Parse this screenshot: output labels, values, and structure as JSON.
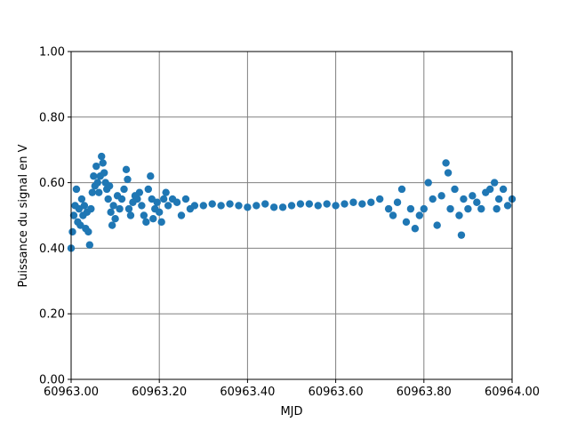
{
  "chart_data": {
    "type": "scatter",
    "xlabel": "MJD",
    "ylabel": "Puissance du signal en V",
    "color": "#1f77b4",
    "grid": true,
    "xlim": [
      60963.0,
      60964.0
    ],
    "ylim": [
      0,
      1
    ],
    "xticks": [
      {
        "value": 60963.0,
        "label": "60963.00"
      },
      {
        "value": 60963.2,
        "label": "60963.20"
      },
      {
        "value": 60963.4,
        "label": "60963.40"
      },
      {
        "value": 60963.6,
        "label": "60963.60"
      },
      {
        "value": 60963.8,
        "label": "60963.80"
      },
      {
        "value": 60964.0,
        "label": "60964.00"
      }
    ],
    "yticks": [
      {
        "value": 0,
        "label": "0.00"
      },
      {
        "value": 0.2,
        "label": "0.20"
      },
      {
        "value": 0.4,
        "label": "0.40"
      },
      {
        "value": 0.6,
        "label": "0.60"
      },
      {
        "value": 0.8,
        "label": "0.80"
      },
      {
        "value": 1,
        "label": "1.00"
      }
    ],
    "x": [
      60963.0,
      60963.003,
      60963.006,
      60963.009,
      60963.012,
      60963.015,
      60963.018,
      60963.021,
      60963.024,
      60963.027,
      60963.03,
      60963.033,
      60963.036,
      60963.039,
      60963.042,
      60963.045,
      60963.048,
      60963.051,
      60963.054,
      60963.057,
      60963.06,
      60963.063,
      60963.066,
      60963.069,
      60963.072,
      60963.075,
      60963.078,
      60963.081,
      60963.084,
      60963.087,
      60963.09,
      60963.093,
      60963.096,
      60963.1,
      60963.105,
      60963.11,
      60963.115,
      60963.12,
      60963.125,
      60963.128,
      60963.131,
      60963.135,
      60963.14,
      60963.145,
      60963.15,
      60963.155,
      60963.16,
      60963.165,
      60963.17,
      60963.175,
      60963.18,
      60963.183,
      60963.186,
      60963.19,
      60963.195,
      60963.2,
      60963.205,
      60963.21,
      60963.215,
      60963.22,
      60963.23,
      60963.24,
      60963.25,
      60963.26,
      60963.27,
      60963.28,
      60963.3,
      60963.32,
      60963.34,
      60963.36,
      60963.38,
      60963.4,
      60963.42,
      60963.44,
      60963.46,
      60963.48,
      60963.5,
      60963.52,
      60963.54,
      60963.56,
      60963.58,
      60963.6,
      60963.62,
      60963.64,
      60963.66,
      60963.68,
      60963.7,
      60963.72,
      60963.73,
      60963.74,
      60963.75,
      60963.76,
      60963.77,
      60963.78,
      60963.79,
      60963.8,
      60963.81,
      60963.82,
      60963.83,
      60963.84,
      60963.85,
      60963.855,
      60963.86,
      60963.87,
      60963.88,
      60963.885,
      60963.89,
      60963.9,
      60963.91,
      60963.92,
      60963.93,
      60963.94,
      60963.95,
      60963.96,
      60963.965,
      60963.97,
      60963.98,
      60963.99,
      60964.0
    ],
    "values": [
      0.4,
      0.45,
      0.5,
      0.53,
      0.58,
      0.48,
      0.52,
      0.47,
      0.55,
      0.5,
      0.53,
      0.46,
      0.51,
      0.45,
      0.41,
      0.52,
      0.57,
      0.62,
      0.59,
      0.65,
      0.6,
      0.57,
      0.62,
      0.68,
      0.66,
      0.63,
      0.6,
      0.58,
      0.55,
      0.59,
      0.51,
      0.47,
      0.53,
      0.49,
      0.56,
      0.52,
      0.55,
      0.58,
      0.64,
      0.61,
      0.52,
      0.5,
      0.54,
      0.56,
      0.55,
      0.57,
      0.53,
      0.5,
      0.48,
      0.58,
      0.62,
      0.55,
      0.49,
      0.52,
      0.54,
      0.51,
      0.48,
      0.55,
      0.57,
      0.53,
      0.55,
      0.54,
      0.5,
      0.55,
      0.52,
      0.53,
      0.53,
      0.535,
      0.53,
      0.535,
      0.53,
      0.525,
      0.53,
      0.535,
      0.525,
      0.525,
      0.53,
      0.535,
      0.535,
      0.53,
      0.535,
      0.53,
      0.535,
      0.54,
      0.535,
      0.54,
      0.55,
      0.52,
      0.5,
      0.54,
      0.58,
      0.48,
      0.52,
      0.46,
      0.5,
      0.52,
      0.6,
      0.55,
      0.47,
      0.56,
      0.66,
      0.63,
      0.52,
      0.58,
      0.5,
      0.44,
      0.55,
      0.52,
      0.56,
      0.54,
      0.52,
      0.57,
      0.58,
      0.6,
      0.52,
      0.55,
      0.58,
      0.53,
      0.55
    ]
  }
}
